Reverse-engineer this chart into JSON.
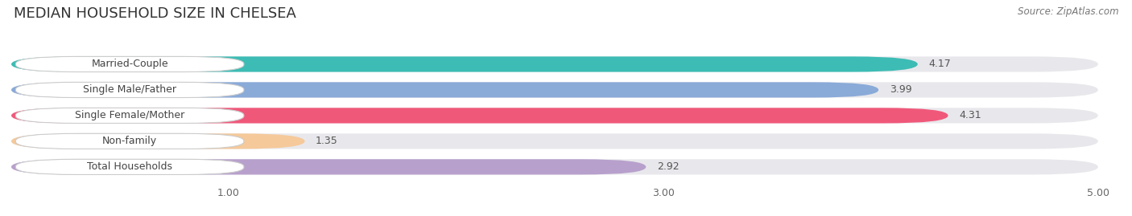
{
  "title": "MEDIAN HOUSEHOLD SIZE IN CHELSEA",
  "source": "Source: ZipAtlas.com",
  "categories": [
    "Married-Couple",
    "Single Male/Father",
    "Single Female/Mother",
    "Non-family",
    "Total Households"
  ],
  "values": [
    4.17,
    3.99,
    4.31,
    1.35,
    2.92
  ],
  "bar_colors": [
    "#3cbcb4",
    "#8aaad8",
    "#f0587a",
    "#f5c99a",
    "#b8a0cc"
  ],
  "xlim": [
    0,
    5.0
  ],
  "xticks": [
    1.0,
    3.0,
    5.0
  ],
  "xtick_labels": [
    "1.00",
    "3.00",
    "5.00"
  ],
  "background_color": "#ffffff",
  "bar_bg_color": "#e8e8ec",
  "title_fontsize": 13,
  "label_fontsize": 9,
  "value_fontsize": 9,
  "source_fontsize": 8.5
}
